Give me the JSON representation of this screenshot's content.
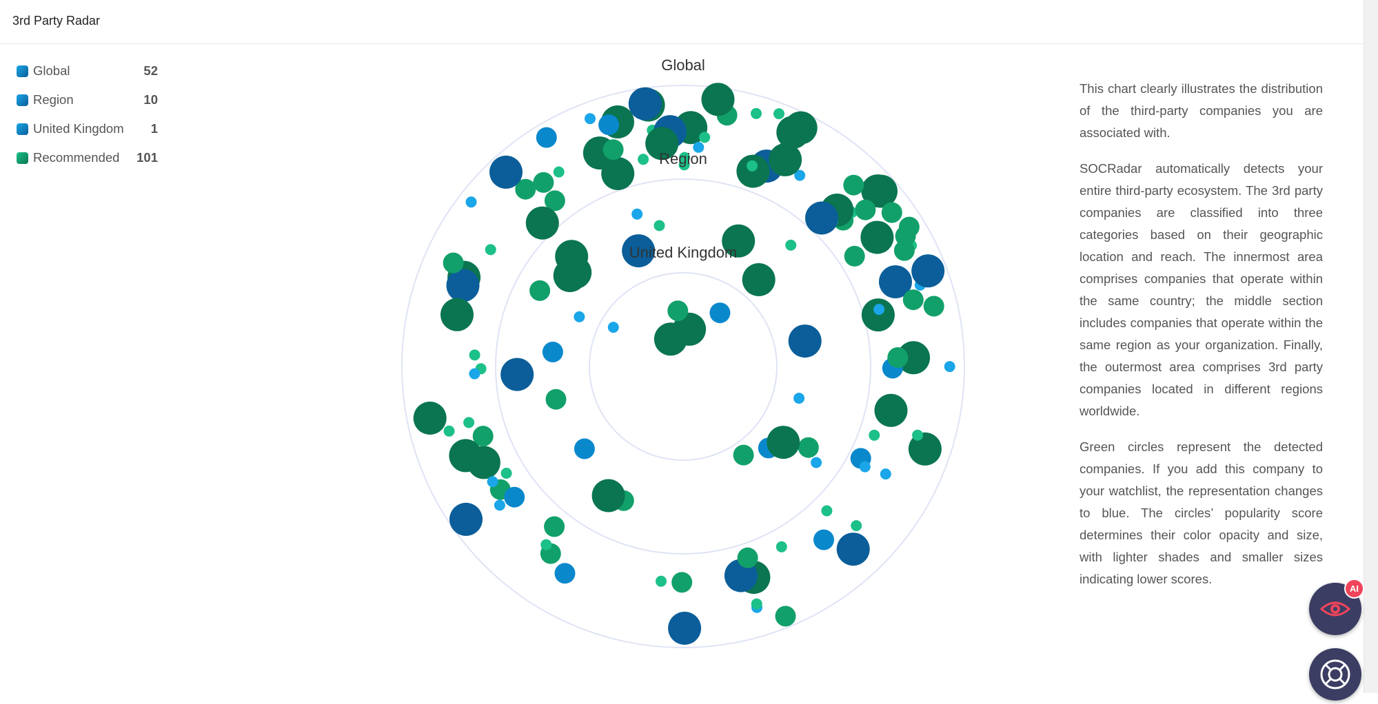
{
  "header": {
    "title": "3rd Party Radar"
  },
  "legend": [
    {
      "label": "Global",
      "count": 52
    },
    {
      "label": "Region",
      "count": 10
    },
    {
      "label": "United Kingdom",
      "count": 1
    },
    {
      "label": "Recommended",
      "count": 101
    }
  ],
  "radar": {
    "rings": [
      "Global",
      "Region",
      "United Kingdom"
    ]
  },
  "description": [
    "This chart clearly illustrates the distribution of the third-party companies you are associated with.",
    "SOCRadar automatically detects your entire third-party ecosystem. The 3rd party companies are classified into three categories based on their geographic location and reach. The innermost area comprises companies that operate within the same country; the middle section includes companies that operate within the same region as your organization. Finally, the outermost area comprises 3rd party companies located in different regions worldwide.",
    "Green circles represent the detected companies. If you add this company to your watchlist, the representation changes to blue. The circles’ popularity score determines their color opacity and size, with lighter shades and smaller sizes indicating lower scores."
  ],
  "assistant": {
    "badge": "AI"
  }
}
